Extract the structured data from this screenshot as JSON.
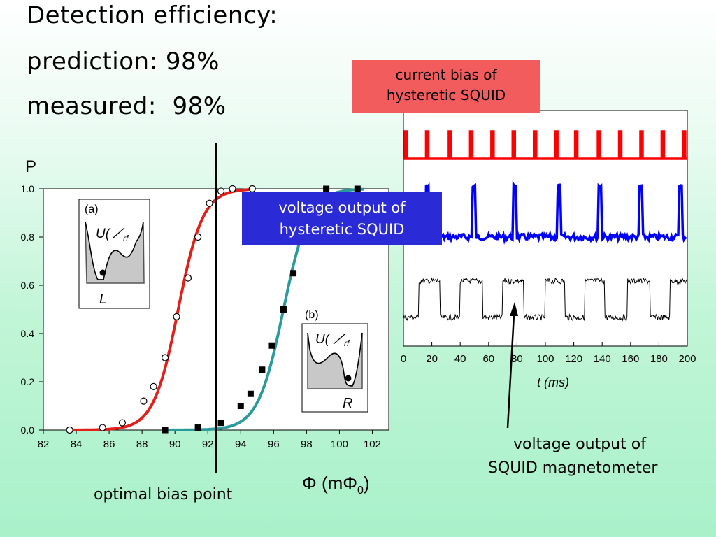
{
  "headline": {
    "line1": "Detection efficiency:",
    "line2": "prediction: 98%",
    "line3": "measured:  98%"
  },
  "callouts": {
    "current_bias": [
      "current bias of",
      "hysteretic SQUID"
    ],
    "voltage_hysteretic": [
      "voltage output of",
      "hysteretic SQUID"
    ],
    "voltage_magnetometer": [
      "voltage output of",
      "SQUID magnetometer"
    ],
    "optimal_bias": "optimal bias point"
  },
  "colors": {
    "red_curve": "#e0201a",
    "teal_curve": "#2a9a9a",
    "bias_line": "#000000",
    "red_trace": "#ff0000",
    "blue_trace": "#0000ff",
    "black_trace": "#000000"
  },
  "insets": {
    "a": {
      "tag": "(a)",
      "potential": "U(",
      "sub": "rf",
      "well": "L"
    },
    "b": {
      "tag": "(b)",
      "potential": "U(",
      "sub": "rf",
      "well": "R"
    }
  },
  "chart_data": [
    {
      "type": "line",
      "ylabel": "P",
      "xlabel": "Φ (mΦ0)",
      "xlim": [
        82,
        103
      ],
      "ylim": [
        0,
        1.0
      ],
      "x_ticks": [
        "82",
        "84",
        "86",
        "88",
        "90",
        "92",
        "94",
        "96",
        "98",
        "100",
        "102"
      ],
      "y_ticks": [
        "0.0",
        "0.2",
        "0.4",
        "0.6",
        "0.8",
        "1.0"
      ],
      "bias_point_x": 92.5,
      "series": [
        {
          "marker": "open-circle",
          "color": "#e0201a",
          "points": [
            [
              83.6,
              0.0
            ],
            [
              85.6,
              0.01
            ],
            [
              86.8,
              0.03
            ],
            [
              88.1,
              0.12
            ],
            [
              88.7,
              0.18
            ],
            [
              89.4,
              0.3
            ],
            [
              90.1,
              0.47
            ],
            [
              90.8,
              0.63
            ],
            [
              91.4,
              0.8
            ],
            [
              92.1,
              0.94
            ],
            [
              92.8,
              0.99
            ],
            [
              93.5,
              1.0
            ],
            [
              94.7,
              1.0
            ]
          ]
        },
        {
          "marker": "filled-square",
          "color": "#2a9a9a",
          "points": [
            [
              89.4,
              0.0
            ],
            [
              91.4,
              0.01
            ],
            [
              92.8,
              0.03
            ],
            [
              94.0,
              0.1
            ],
            [
              94.6,
              0.15
            ],
            [
              95.3,
              0.25
            ],
            [
              95.9,
              0.35
            ],
            [
              96.6,
              0.5
            ],
            [
              97.2,
              0.65
            ],
            [
              99.2,
              1.0
            ],
            [
              101.1,
              1.0
            ]
          ]
        }
      ]
    },
    {
      "type": "line",
      "xlabel": "t (ms)",
      "xlim": [
        0,
        200
      ],
      "x_ticks": [
        "0",
        "20",
        "40",
        "60",
        "80",
        "100",
        "120",
        "140",
        "160",
        "180",
        "200"
      ],
      "series": [
        {
          "color": "#ff0000",
          "pulse_times_ms": [
            0,
            15,
            31,
            46,
            61,
            76,
            91,
            106,
            120,
            136,
            151,
            166,
            181,
            196
          ]
        },
        {
          "color": "#0000ff",
          "spike_times_ms": [
            16,
            48,
            77,
            108,
            137,
            166,
            194
          ]
        },
        {
          "color": "#000000",
          "square_transitions_ms": [
            11,
            26,
            40,
            56,
            70,
            85,
            100,
            114,
            128,
            142,
            158,
            174,
            188
          ]
        }
      ]
    }
  ]
}
